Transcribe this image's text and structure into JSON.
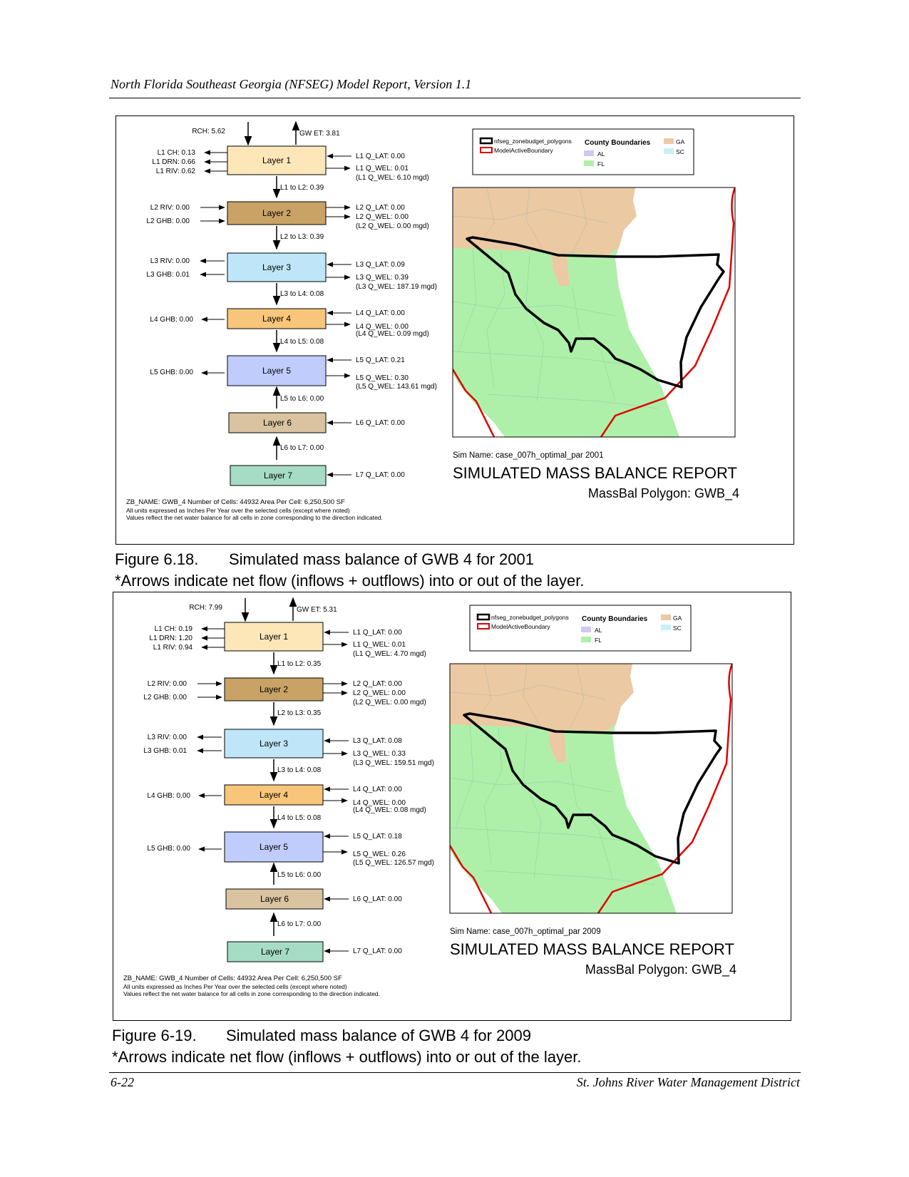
{
  "header": {
    "title": "North Florida Southeast Georgia (NFSEG) Model Report, Version 1.1"
  },
  "footer": {
    "page": "6-22",
    "org": "St. Johns River Water Management District"
  },
  "colors": {
    "layer1": "#fde6b8",
    "layer2": "#c9a266",
    "layer3": "#bfe6f8",
    "layer4": "#f7c67a",
    "layer5": "#c0ccfb",
    "layer6": "#d9c3a0",
    "layer7": "#a6dcc5",
    "ga": "#ebc9a3",
    "fl": "#aef0a9",
    "al": "#cfc7f0",
    "sc": "#c8f1f7",
    "boundary": "#e00000"
  },
  "legend": {
    "zonebudget": "nfseg_zonebudget_polygons",
    "active": "ModelActiveBoundary",
    "county": "County Boundaries",
    "al": "AL",
    "fl": "FL",
    "ga": "GA",
    "sc": "SC"
  },
  "report_title": "SIMULATED MASS BALANCE REPORT",
  "polygon_label": "MassBal Polygon: GWB_4",
  "notes": {
    "zb": "ZB_NAME: GWB_4  Number of Cells: 44932  Area Per Cell: 6,250,500 SF",
    "units": "All units expressed as Inches Per Year over the selected cells (except where noted)",
    "values": "Values reflect the net water balance for all cells in zone corresponding to the direction indicated."
  },
  "layer_names": [
    "Layer 1",
    "Layer 2",
    "Layer 3",
    "Layer 4",
    "Layer 5",
    "Layer 6",
    "Layer 7"
  ],
  "figures": [
    {
      "sim": "Sim Name: case_007h_optimal_par    2001",
      "caption_num": "Figure 6.18.",
      "caption_title": "Simulated mass balance of GWB 4 for 2001",
      "caption_note": "*Arrows indicate net flow (inflows + outflows) into or out of the layer.",
      "rch": "RCH:  5.62",
      "gwet": "GW ET:  3.81",
      "l1_ch": "L1 CH:  0.13",
      "l1_drn": "L1 DRN:  0.66",
      "l1_riv": "L1 RIV:  0.62",
      "l1_qlat": "L1 Q_LAT:  0.00",
      "l1_qwel": "L1 Q_WEL:  0.01",
      "l1_mgd": "(L1 Q_WEL:  6.10 mgd)",
      "l1_l2": "L1 to L2:  0.39",
      "l2_riv": "L2 RIV:  0.00",
      "l2_ghb": "L2 GHB:  0.00",
      "l2_qlat": "L2 Q_LAT:  0.00",
      "l2_qwel": "L2 Q_WEL:  0.00",
      "l2_mgd": "(L2 Q_WEL:  0.00 mgd)",
      "l2_l3": "L2 to L3:  0.39",
      "l3_riv": "L3 RIV:  0.00",
      "l3_ghb": "L3 GHB:  0.01",
      "l3_qlat": "L3 Q_LAT:  0.09",
      "l3_qwel": "L3 Q_WEL:  0.39",
      "l3_mgd": "(L3 Q_WEL:  187.19 mgd)",
      "l3_l4": "L3 to L4:  0.08",
      "l4_ghb": "L4 GHB:  0.00",
      "l4_qlat": "L4 Q_LAT:  0.00",
      "l4_qwel": "L4 Q_WEL:  0.00",
      "l4_mgd": "(L4 Q_WEL:  0.09 mgd)",
      "l4_l5": "L4 to L5:  0.08",
      "l5_ghb": "L5 GHB:  0.00",
      "l5_qlat": "L5 Q_LAT:  0.21",
      "l5_qwel": "L5 Q_WEL:  0.30",
      "l5_mgd": "(L5 Q_WEL:  143.61 mgd)",
      "l5_l6": "L5 to L6:  0.00",
      "l6_qlat": "L6 Q_LAT:  0.00",
      "l6_l7": "L6 to L7:  0.00",
      "l7_qlat": "L7 Q_LAT:  0.00"
    },
    {
      "sim": "Sim Name: case_007h_optimal_par    2009",
      "caption_num": "Figure 6-19.",
      "caption_title": "Simulated mass balance of GWB 4 for 2009",
      "caption_note": "*Arrows indicate net flow (inflows + outflows) into or out of the layer.",
      "rch": "RCH:  7.99",
      "gwet": "GW ET:  5.31",
      "l1_ch": "L1 CH:  0.19",
      "l1_drn": "L1 DRN:  1.20",
      "l1_riv": "L1 RIV:  0.94",
      "l1_qlat": "L1 Q_LAT:  0.00",
      "l1_qwel": "L1 Q_WEL:  0.01",
      "l1_mgd": "(L1 Q_WEL:  4.70 mgd)",
      "l1_l2": "L1 to L2:  0.35",
      "l2_riv": "L2 RIV:  0.00",
      "l2_ghb": "L2 GHB:  0.00",
      "l2_qlat": "L2 Q_LAT:  0.00",
      "l2_qwel": "L2 Q_WEL:  0.00",
      "l2_mgd": "(L2 Q_WEL:  0.00 mgd)",
      "l2_l3": "L2 to L3:  0.35",
      "l3_riv": "L3 RIV:  0.00",
      "l3_ghb": "L3 GHB:  0.01",
      "l3_qlat": "L3 Q_LAT:  0.08",
      "l3_qwel": "L3 Q_WEL:  0.33",
      "l3_mgd": "(L3 Q_WEL:  159.51 mgd)",
      "l3_l4": "L3 to L4:  0.08",
      "l4_ghb": "L4 GHB:  0.00",
      "l4_qlat": "L4 Q_LAT:  0.00",
      "l4_qwel": "L4 Q_WEL:  0.00",
      "l4_mgd": "(L4 Q_WEL:  0.08 mgd)",
      "l4_l5": "L4 to L5:  0.08",
      "l5_ghb": "L5 GHB:  0.00",
      "l5_qlat": "L5 Q_LAT:  0.18",
      "l5_qwel": "L5 Q_WEL:  0.26",
      "l5_mgd": "(L5 Q_WEL:  126.57 mgd)",
      "l5_l6": "L5 to L6:  0.00",
      "l6_qlat": "L6 Q_LAT:  0.00",
      "l6_l7": "L6 to L7:  0.00",
      "l7_qlat": "L7 Q_LAT:  0.00"
    }
  ]
}
